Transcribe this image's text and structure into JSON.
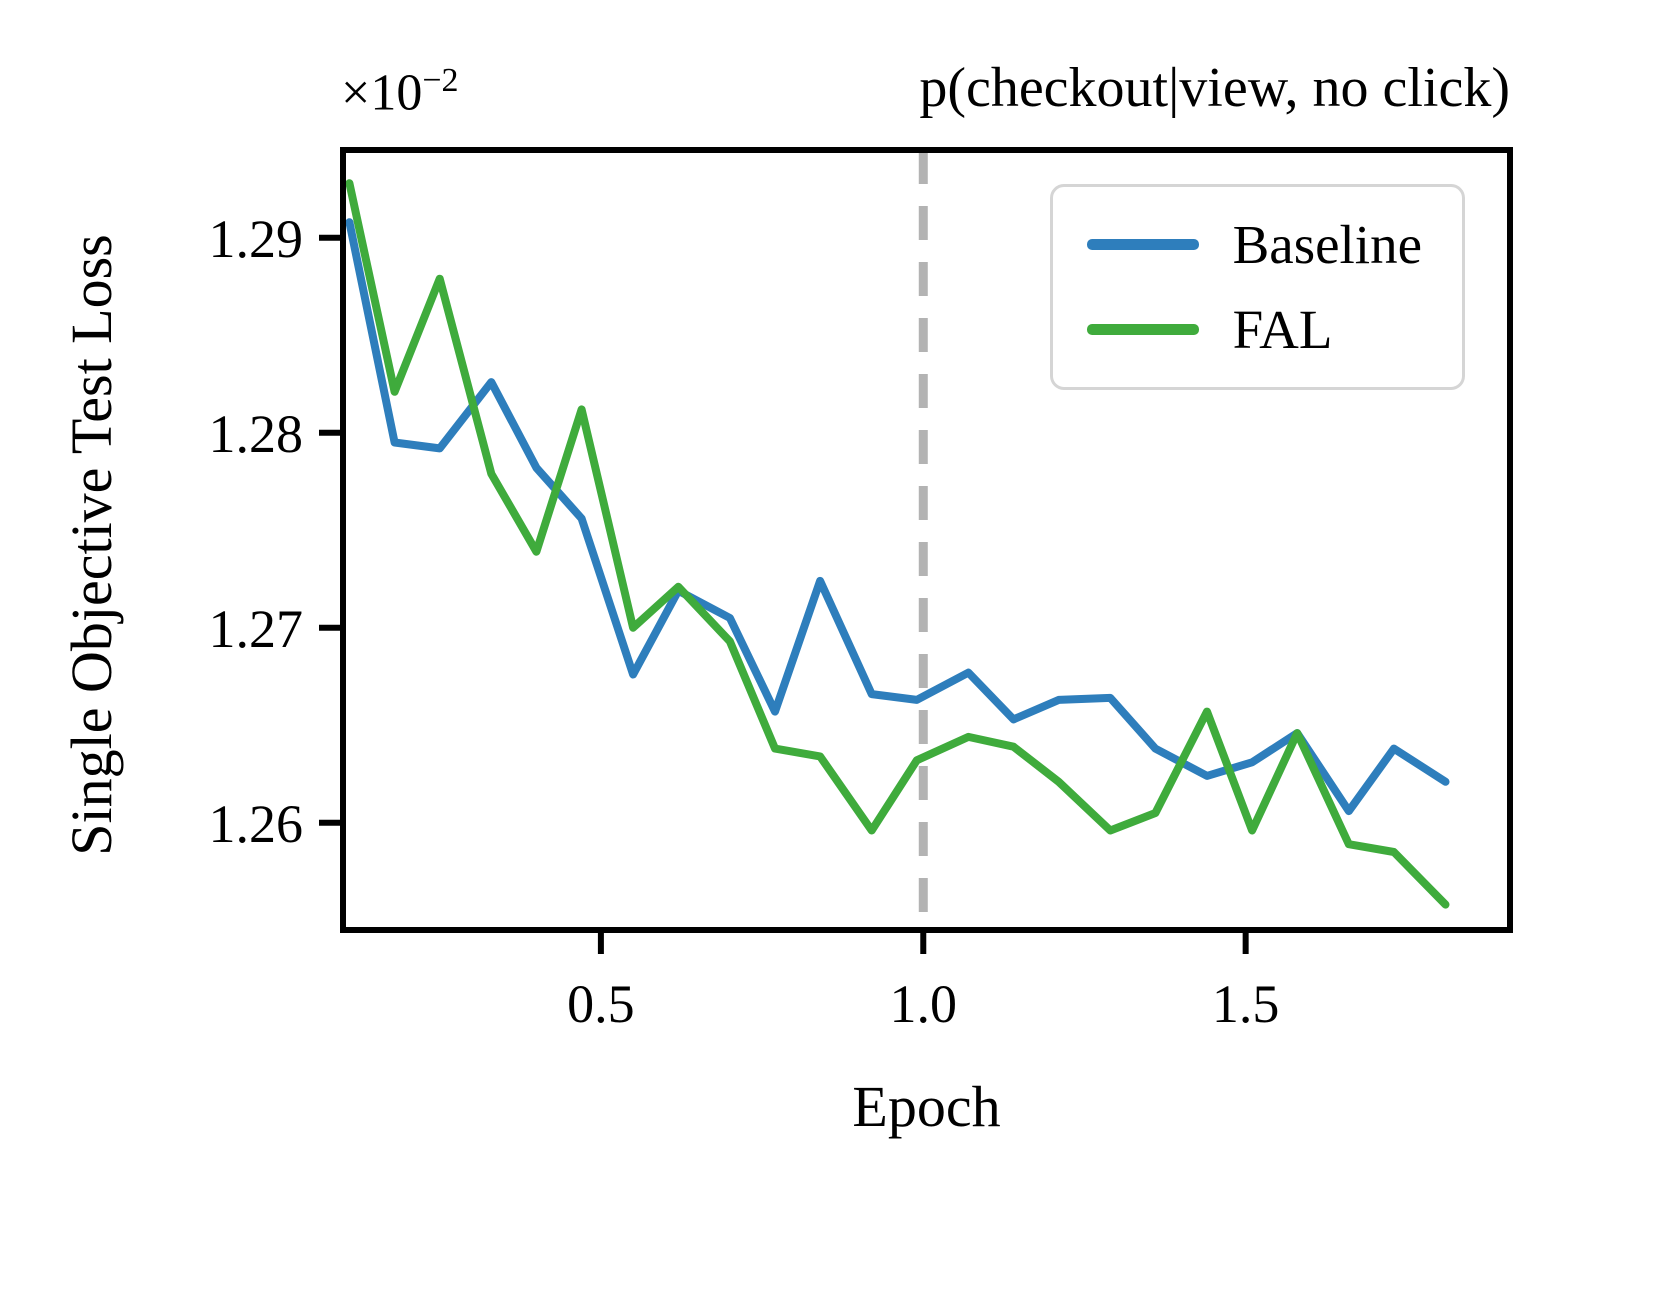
{
  "chart_data": {
    "type": "line",
    "title": "p(checkout|view, no click)",
    "xlabel": "Epoch",
    "ylabel": "Single Objective Test Loss",
    "y_offset_text": {
      "base": "×10",
      "exp": "−2"
    },
    "xlim": [
      0.1,
      1.91
    ],
    "ylim": [
      1.2545,
      1.2945
    ],
    "xticks": [
      0.5,
      1.0,
      1.5
    ],
    "xtick_labels": [
      "0.5",
      "1.0",
      "1.5"
    ],
    "yticks": [
      1.26,
      1.27,
      1.28,
      1.29
    ],
    "ytick_labels": [
      "1.26",
      "1.27",
      "1.28",
      "1.29"
    ],
    "grid": false,
    "vline": {
      "x": 1.0,
      "color": "#b3b3b3",
      "style": "dashed"
    },
    "x": [
      0.11,
      0.18,
      0.25,
      0.33,
      0.4,
      0.47,
      0.55,
      0.62,
      0.7,
      0.77,
      0.84,
      0.92,
      0.99,
      1.07,
      1.14,
      1.21,
      1.29,
      1.36,
      1.44,
      1.51,
      1.58,
      1.66,
      1.73,
      1.81
    ],
    "series": [
      {
        "name": "Baseline",
        "color": "#2e7ebc",
        "values": [
          1.2908,
          1.2795,
          1.2792,
          1.2826,
          1.2782,
          1.2756,
          1.2676,
          1.2719,
          1.2705,
          1.2657,
          1.2724,
          1.2666,
          1.2663,
          1.2677,
          1.2653,
          1.2663,
          1.2664,
          1.2638,
          1.2624,
          1.2631,
          1.2646,
          1.2606,
          1.2638,
          1.2621
        ]
      },
      {
        "name": "FAL",
        "color": "#3fab3c",
        "values": [
          1.2928,
          1.2821,
          1.2879,
          1.2779,
          1.2739,
          1.2812,
          1.27,
          1.2721,
          1.2693,
          1.2638,
          1.2634,
          1.2596,
          1.2632,
          1.2644,
          1.2639,
          1.2621,
          1.2596,
          1.2605,
          1.2657,
          1.2596,
          1.2646,
          1.2589,
          1.2585,
          1.2558
        ]
      }
    ],
    "legend": {
      "position": "upper right",
      "entries": [
        "Baseline",
        "FAL"
      ]
    }
  }
}
